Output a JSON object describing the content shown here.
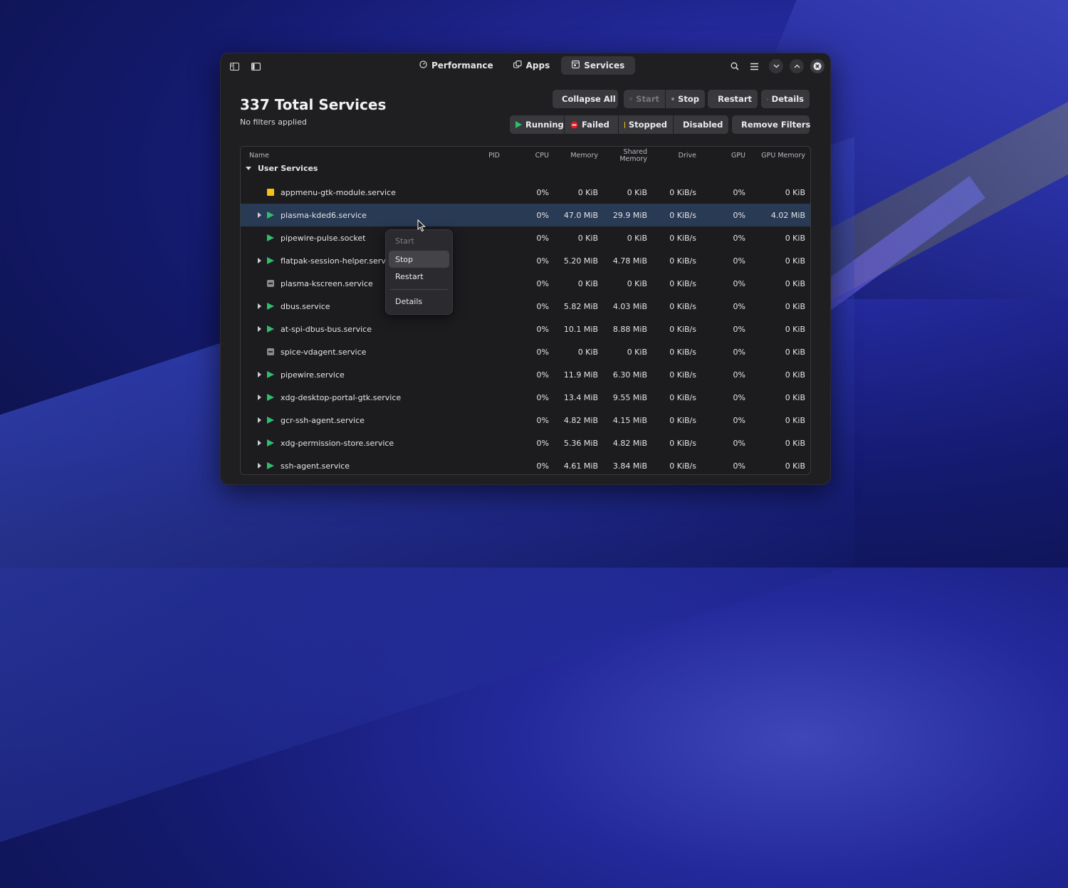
{
  "colors": {
    "running": "#2fbe6a",
    "failed": "#e01b24",
    "stopped": "#f5c211",
    "disabled": "#8a8a90",
    "selected_row": "#293a55"
  },
  "titlebar": {
    "tabs": [
      {
        "label": "Performance",
        "icon": "gauge-icon"
      },
      {
        "label": "Apps",
        "icon": "apps-icon"
      },
      {
        "label": "Services",
        "icon": "services-icon",
        "active": true
      }
    ]
  },
  "header": {
    "title": "337 Total Services",
    "subtitle": "No filters applied"
  },
  "toolbar": {
    "collapse_all": "Collapse All",
    "start": "Start",
    "stop": "Stop",
    "restart": "Restart",
    "details": "Details",
    "filters": {
      "running": "Running",
      "failed": "Failed",
      "stopped": "Stopped",
      "disabled": "Disabled",
      "remove": "Remove Filters"
    }
  },
  "table": {
    "columns": {
      "name": "Name",
      "pid": "PID",
      "cpu": "CPU",
      "memory": "Memory",
      "shared_1": "Shared",
      "shared_2": "Memory",
      "drive": "Drive",
      "gpu": "GPU",
      "gpu_memory": "GPU Memory"
    },
    "group": "User Services",
    "rows": [
      {
        "name": "appmenu-gtk-module.service",
        "status": "stopped",
        "expandable": false,
        "cpu": "0%",
        "memory": "0 KiB",
        "shared": "0 KiB",
        "drive": "0 KiB/s",
        "gpu": "0%",
        "gpu_memory": "0 KiB"
      },
      {
        "name": "plasma-kded6.service",
        "status": "running",
        "expandable": true,
        "selected": true,
        "cpu": "0%",
        "memory": "47.0 MiB",
        "shared": "29.9 MiB",
        "drive": "0 KiB/s",
        "gpu": "0%",
        "gpu_memory": "4.02 MiB"
      },
      {
        "name": "pipewire-pulse.socket",
        "status": "running",
        "expandable": false,
        "cpu": "0%",
        "memory": "0 KiB",
        "shared": "0 KiB",
        "drive": "0 KiB/s",
        "gpu": "0%",
        "gpu_memory": "0 KiB"
      },
      {
        "name": "flatpak-session-helper.service",
        "status": "running",
        "expandable": true,
        "cpu": "0%",
        "memory": "5.20 MiB",
        "shared": "4.78 MiB",
        "drive": "0 KiB/s",
        "gpu": "0%",
        "gpu_memory": "0 KiB"
      },
      {
        "name": "plasma-kscreen.service",
        "status": "disabled",
        "expandable": false,
        "cpu": "0%",
        "memory": "0 KiB",
        "shared": "0 KiB",
        "drive": "0 KiB/s",
        "gpu": "0%",
        "gpu_memory": "0 KiB"
      },
      {
        "name": "dbus.service",
        "status": "running",
        "expandable": true,
        "cpu": "0%",
        "memory": "5.82 MiB",
        "shared": "4.03 MiB",
        "drive": "0 KiB/s",
        "gpu": "0%",
        "gpu_memory": "0 KiB"
      },
      {
        "name": "at-spi-dbus-bus.service",
        "status": "running",
        "expandable": true,
        "cpu": "0%",
        "memory": "10.1 MiB",
        "shared": "8.88 MiB",
        "drive": "0 KiB/s",
        "gpu": "0%",
        "gpu_memory": "0 KiB"
      },
      {
        "name": "spice-vdagent.service",
        "status": "disabled",
        "expandable": false,
        "cpu": "0%",
        "memory": "0 KiB",
        "shared": "0 KiB",
        "drive": "0 KiB/s",
        "gpu": "0%",
        "gpu_memory": "0 KiB"
      },
      {
        "name": "pipewire.service",
        "status": "running",
        "expandable": true,
        "cpu": "0%",
        "memory": "11.9 MiB",
        "shared": "6.30 MiB",
        "drive": "0 KiB/s",
        "gpu": "0%",
        "gpu_memory": "0 KiB"
      },
      {
        "name": "xdg-desktop-portal-gtk.service",
        "status": "running",
        "expandable": true,
        "cpu": "0%",
        "memory": "13.4 MiB",
        "shared": "9.55 MiB",
        "drive": "0 KiB/s",
        "gpu": "0%",
        "gpu_memory": "0 KiB"
      },
      {
        "name": "gcr-ssh-agent.service",
        "status": "running",
        "expandable": true,
        "cpu": "0%",
        "memory": "4.82 MiB",
        "shared": "4.15 MiB",
        "drive": "0 KiB/s",
        "gpu": "0%",
        "gpu_memory": "0 KiB"
      },
      {
        "name": "xdg-permission-store.service",
        "status": "running",
        "expandable": true,
        "cpu": "0%",
        "memory": "5.36 MiB",
        "shared": "4.82 MiB",
        "drive": "0 KiB/s",
        "gpu": "0%",
        "gpu_memory": "0 KiB"
      },
      {
        "name": "ssh-agent.service",
        "status": "running",
        "expandable": true,
        "cpu": "0%",
        "memory": "4.61 MiB",
        "shared": "3.84 MiB",
        "drive": "0 KiB/s",
        "gpu": "0%",
        "gpu_memory": "0 KiB"
      }
    ]
  },
  "context_menu": {
    "items": [
      {
        "label": "Start",
        "disabled": true
      },
      {
        "label": "Stop",
        "hover": true
      },
      {
        "label": "Restart"
      },
      {
        "label": "Details"
      }
    ]
  }
}
